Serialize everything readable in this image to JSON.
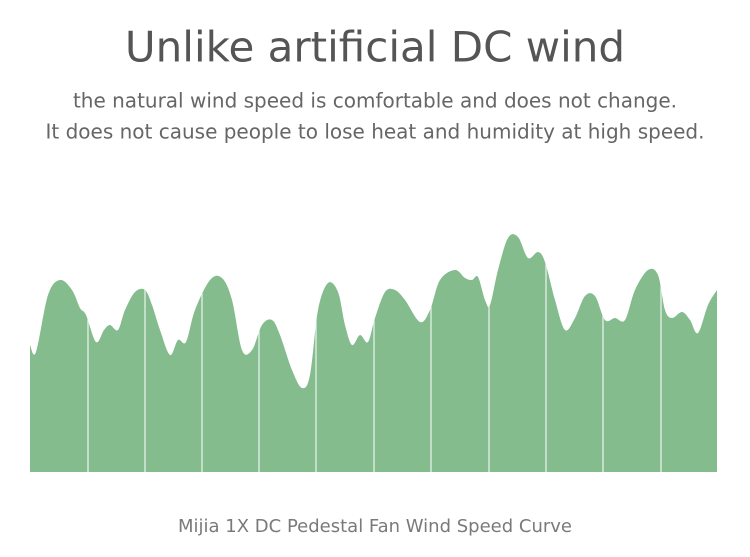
{
  "header": {
    "title": "Unlike artificial DC wind",
    "subtitle_lines": [
      "the natural wind speed is comfortable and does not change.",
      "It does not cause people to lose heat and humidity at high speed."
    ]
  },
  "caption": "Mijia 1X DC Pedestal Fan Wind Speed Curve"
}
